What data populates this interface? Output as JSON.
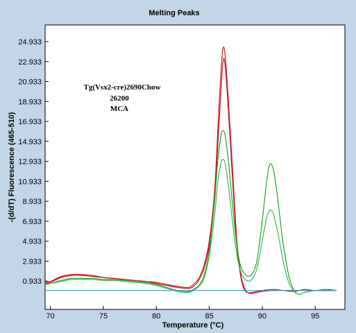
{
  "chart_data": {
    "type": "line",
    "title": "Melting Peaks",
    "xlabel": "Temperature (°C)",
    "ylabel": "-(d/dT) Fluorescence (465-510)",
    "xlim": [
      69.5,
      97.8
    ],
    "ylim": [
      -1.9,
      26.6
    ],
    "x_ticks": [
      70,
      75,
      80,
      85,
      90,
      95
    ],
    "y_ticks": [
      0.933,
      2.933,
      4.933,
      6.933,
      8.933,
      10.933,
      12.933,
      14.933,
      16.933,
      18.933,
      20.933,
      22.933,
      24.933
    ],
    "x_tick_labels": [
      "70",
      "75",
      "80",
      "85",
      "90",
      "95"
    ],
    "y_tick_labels": [
      "0.933",
      "2.933",
      "4.933",
      "6.933",
      "8.933",
      "10.933",
      "12.933",
      "14.933",
      "16.933",
      "18.933",
      "20.933",
      "22.933",
      "24.933"
    ],
    "grid": false,
    "legend": "none",
    "annotation": [
      "Tg(Vsx2-cre)2690Chow",
      "26200",
      "MCA"
    ],
    "series": [
      {
        "color": "#d81818",
        "points": [
          [
            69.5,
            0.8
          ],
          [
            70,
            0.9
          ],
          [
            71,
            1.4
          ],
          [
            72,
            1.6
          ],
          [
            73,
            1.6
          ],
          [
            74,
            1.5
          ],
          [
            75,
            1.3
          ],
          [
            76,
            1.2
          ],
          [
            77,
            1.1
          ],
          [
            78,
            1.0
          ],
          [
            79,
            0.9
          ],
          [
            80,
            0.8
          ],
          [
            81,
            0.6
          ],
          [
            82,
            0.4
          ],
          [
            83,
            0.3
          ],
          [
            83.5,
            0.6
          ],
          [
            84,
            1.2
          ],
          [
            84.5,
            2.5
          ],
          [
            85,
            5.0
          ],
          [
            85.5,
            10
          ],
          [
            85.8,
            16
          ],
          [
            86.1,
            22
          ],
          [
            86.3,
            24.3
          ],
          [
            86.5,
            23.5
          ],
          [
            86.8,
            19
          ],
          [
            87.2,
            12
          ],
          [
            87.6,
            5
          ],
          [
            88,
            1.5
          ],
          [
            88.3,
            0.3
          ],
          [
            88.6,
            -0.2
          ],
          [
            89,
            -0.2
          ],
          [
            90,
            0.0
          ],
          [
            91,
            0.1
          ],
          [
            92,
            0.0
          ],
          [
            93,
            -0.1
          ],
          [
            94,
            0.1
          ],
          [
            95,
            0.0
          ],
          [
            96,
            0.1
          ],
          [
            97,
            0.0
          ]
        ]
      },
      {
        "color": "#b01830",
        "points": [
          [
            69.5,
            0.7
          ],
          [
            70,
            0.8
          ],
          [
            71,
            1.3
          ],
          [
            72,
            1.5
          ],
          [
            73,
            1.5
          ],
          [
            74,
            1.4
          ],
          [
            75,
            1.3
          ],
          [
            76,
            1.2
          ],
          [
            77,
            1.1
          ],
          [
            78,
            1.0
          ],
          [
            79,
            0.9
          ],
          [
            80,
            0.7
          ],
          [
            81,
            0.5
          ],
          [
            82,
            0.3
          ],
          [
            83,
            0.2
          ],
          [
            83.5,
            0.4
          ],
          [
            84,
            1.0
          ],
          [
            84.5,
            2.2
          ],
          [
            85,
            4.5
          ],
          [
            85.5,
            9
          ],
          [
            85.8,
            14.5
          ],
          [
            86.1,
            20
          ],
          [
            86.3,
            23.0
          ],
          [
            86.5,
            22.5
          ],
          [
            86.8,
            18
          ],
          [
            87.2,
            11
          ],
          [
            87.6,
            4.5
          ],
          [
            88,
            1.2
          ],
          [
            88.3,
            0.1
          ],
          [
            88.6,
            -0.2
          ],
          [
            89,
            -0.3
          ],
          [
            90,
            -0.1
          ],
          [
            91,
            0.0
          ],
          [
            92,
            0.0
          ],
          [
            93,
            0.0
          ],
          [
            94,
            0.0
          ],
          [
            95,
            0.0
          ],
          [
            96,
            0.0
          ],
          [
            97,
            0.0
          ]
        ]
      },
      {
        "color": "#1aa62a",
        "points": [
          [
            69.5,
            0.6
          ],
          [
            70,
            0.7
          ],
          [
            71,
            1.0
          ],
          [
            72,
            1.2
          ],
          [
            73,
            1.2
          ],
          [
            74,
            1.2
          ],
          [
            75,
            1.1
          ],
          [
            76,
            1.1
          ],
          [
            77,
            1.0
          ],
          [
            78,
            0.9
          ],
          [
            79,
            0.8
          ],
          [
            80,
            0.6
          ],
          [
            81,
            0.3
          ],
          [
            82,
            0.0
          ],
          [
            83,
            -0.1
          ],
          [
            83.5,
            0.1
          ],
          [
            84,
            0.5
          ],
          [
            84.5,
            1.5
          ],
          [
            85,
            4.0
          ],
          [
            85.5,
            9
          ],
          [
            85.8,
            13
          ],
          [
            86.1,
            15.5
          ],
          [
            86.3,
            16.0
          ],
          [
            86.5,
            15.5
          ],
          [
            86.8,
            13
          ],
          [
            87.2,
            8.5
          ],
          [
            87.6,
            4.5
          ],
          [
            88,
            2.3
          ],
          [
            88.5,
            1.5
          ],
          [
            89,
            1.6
          ],
          [
            89.5,
            3
          ],
          [
            90,
            7
          ],
          [
            90.4,
            10.8
          ],
          [
            90.7,
            12.6
          ],
          [
            91,
            12.3
          ],
          [
            91.3,
            10.5
          ],
          [
            91.7,
            7
          ],
          [
            92,
            4.5
          ],
          [
            92.5,
            1.5
          ],
          [
            93,
            0.0
          ],
          [
            93.5,
            -0.4
          ],
          [
            94,
            -0.2
          ],
          [
            95,
            0.0
          ],
          [
            96,
            0.0
          ],
          [
            97,
            0.0
          ]
        ]
      },
      {
        "color": "#3cb84c",
        "points": [
          [
            69.5,
            0.6
          ],
          [
            70,
            0.7
          ],
          [
            71,
            0.9
          ],
          [
            72,
            1.1
          ],
          [
            73,
            1.1
          ],
          [
            74,
            1.1
          ],
          [
            75,
            1.0
          ],
          [
            76,
            1.0
          ],
          [
            77,
            0.9
          ],
          [
            78,
            0.8
          ],
          [
            79,
            0.7
          ],
          [
            80,
            0.5
          ],
          [
            81,
            0.2
          ],
          [
            82,
            -0.1
          ],
          [
            83,
            -0.2
          ],
          [
            83.5,
            0.0
          ],
          [
            84,
            0.4
          ],
          [
            84.5,
            1.2
          ],
          [
            85,
            3.5
          ],
          [
            85.5,
            7.5
          ],
          [
            85.8,
            10.8
          ],
          [
            86.1,
            12.8
          ],
          [
            86.3,
            13.1
          ],
          [
            86.5,
            12.7
          ],
          [
            86.8,
            10.5
          ],
          [
            87.2,
            6.8
          ],
          [
            87.6,
            3.6
          ],
          [
            88,
            1.8
          ],
          [
            88.5,
            1.0
          ],
          [
            89,
            1.1
          ],
          [
            89.5,
            2.2
          ],
          [
            90,
            5
          ],
          [
            90.4,
            7.2
          ],
          [
            90.7,
            8.0
          ],
          [
            91,
            7.8
          ],
          [
            91.3,
            6.6
          ],
          [
            91.7,
            4.5
          ],
          [
            92,
            2.8
          ],
          [
            92.5,
            0.8
          ],
          [
            93,
            -0.1
          ],
          [
            93.5,
            -0.4
          ],
          [
            94,
            -0.2
          ],
          [
            95,
            0.0
          ],
          [
            96,
            0.0
          ],
          [
            97,
            0.0
          ]
        ]
      },
      {
        "color": "#2f9bc4",
        "points": [
          [
            69.5,
            0.0
          ],
          [
            70,
            0.0
          ],
          [
            72,
            0.0
          ],
          [
            74,
            0.0
          ],
          [
            76,
            0.0
          ],
          [
            78,
            0.0
          ],
          [
            80,
            0.0
          ],
          [
            82,
            0.0
          ],
          [
            84,
            0.0
          ],
          [
            86,
            0.0
          ],
          [
            88,
            0.0
          ],
          [
            90,
            0.0
          ],
          [
            92,
            0.0
          ],
          [
            94,
            0.0
          ],
          [
            96,
            0.0
          ],
          [
            97,
            0.0
          ]
        ]
      }
    ]
  }
}
